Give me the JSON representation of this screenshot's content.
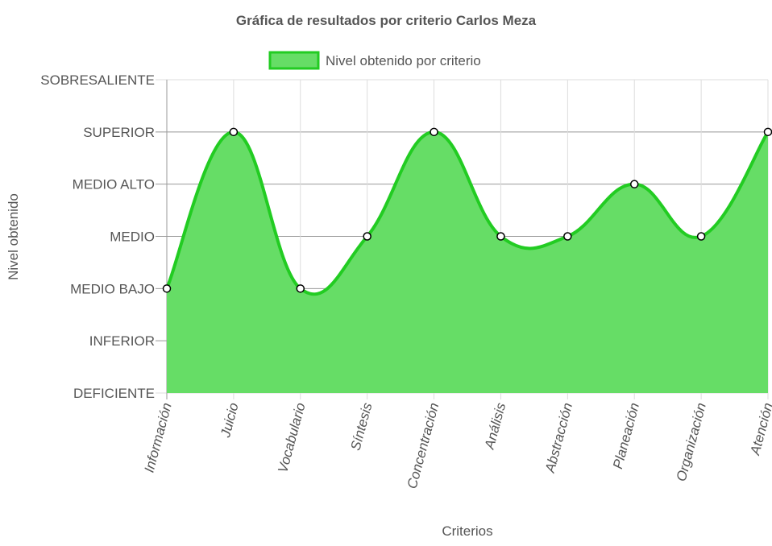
{
  "chart_data": {
    "type": "area",
    "title": "Gráfica de resultados por criterio Carlos Meza",
    "xlabel": "Criterios",
    "ylabel": "Nivel obtenido",
    "y_levels": [
      "DEFICIENTE",
      "INFERIOR",
      "MEDIO BAJO",
      "MEDIO",
      "MEDIO ALTO",
      "SUPERIOR",
      "SOBRESALIENTE"
    ],
    "categories": [
      "Información",
      "Juicio",
      "Vocabulario",
      "Síntesis",
      "Concentración",
      "Análisis",
      "Abstracción",
      "Planeación",
      "Organización",
      "Atención"
    ],
    "series": [
      {
        "name": "Nivel obtenido por criterio",
        "values": [
          "MEDIO BAJO",
          "SUPERIOR",
          "MEDIO BAJO",
          "MEDIO",
          "SUPERIOR",
          "MEDIO",
          "MEDIO",
          "MEDIO ALTO",
          "MEDIO",
          "SUPERIOR"
        ]
      }
    ],
    "ylim": [
      0,
      6
    ],
    "grid": true,
    "legend_position": "top",
    "colors": {
      "fill": "#66dd66",
      "line": "#22cc22",
      "grid": "#dddddd",
      "grid_dark": "#999999",
      "point_fill": "#ffffff",
      "point_stroke": "#000000"
    }
  }
}
